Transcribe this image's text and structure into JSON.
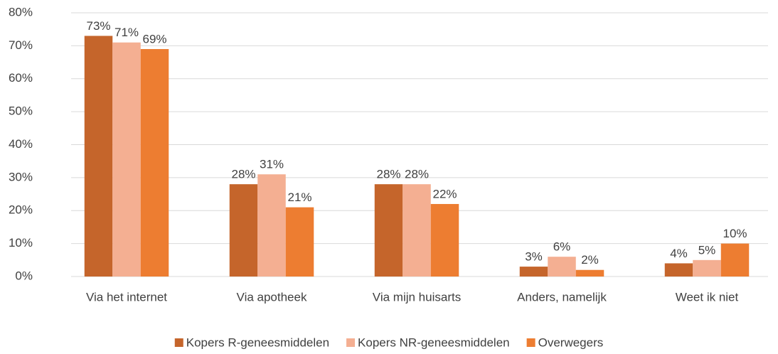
{
  "chart_data": {
    "type": "bar",
    "categories": [
      "Via het internet",
      "Via apotheek",
      "Via mijn huisarts",
      "Anders, namelijk",
      "Weet ik niet"
    ],
    "series": [
      {
        "name": "Kopers R-geneesmiddelen",
        "color": "#c5652b",
        "values": [
          73,
          28,
          28,
          3,
          4
        ],
        "value_labels": [
          "73%",
          "28%",
          "28%",
          "3%",
          "4%"
        ]
      },
      {
        "name": "Kopers NR-geneesmiddelen",
        "color": "#f4af92",
        "values": [
          71,
          31,
          28,
          6,
          5
        ],
        "value_labels": [
          "71%",
          "31%",
          "28%",
          "6%",
          "5%"
        ]
      },
      {
        "name": "Overwegers",
        "color": "#ed7d31",
        "values": [
          69,
          21,
          22,
          2,
          10
        ],
        "value_labels": [
          "69%",
          "21%",
          "22%",
          "2%",
          "10%"
        ]
      }
    ],
    "ylim": [
      0,
      80
    ],
    "yticks": [
      {
        "value": 0,
        "label": "0%"
      },
      {
        "value": 10,
        "label": "10%"
      },
      {
        "value": 20,
        "label": "20%"
      },
      {
        "value": 30,
        "label": "30%"
      },
      {
        "value": 40,
        "label": "40%"
      },
      {
        "value": 50,
        "label": "50%"
      },
      {
        "value": 60,
        "label": "60%"
      },
      {
        "value": 70,
        "label": "70%"
      },
      {
        "value": 80,
        "label": "80%"
      }
    ],
    "grid": true,
    "legend": "bottom"
  }
}
